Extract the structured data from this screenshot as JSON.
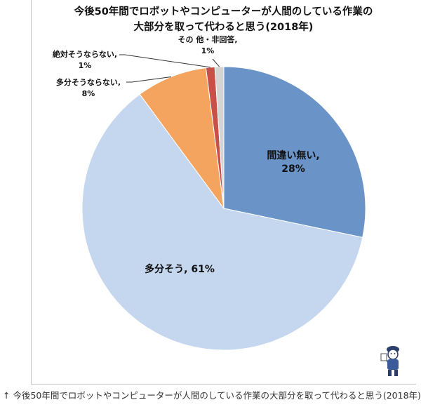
{
  "chart_data": {
    "type": "pie",
    "title_lines": [
      "今後50年間でロボットやコンピューターが人間のしている作業の",
      "大部分を取って代わると思う(2018年)"
    ],
    "slices": [
      {
        "name": "間違い無い",
        "value": 28,
        "label": "28%",
        "color": "#6a94c7"
      },
      {
        "name": "多分そう",
        "value": 61,
        "label": "61%",
        "color": "#c5d7ef"
      },
      {
        "name": "多分そうならない",
        "value": 8,
        "label": "8%",
        "color": "#f5a460"
      },
      {
        "name": "絶対そうならない",
        "value": 1,
        "label": "1%",
        "color": "#c85048"
      },
      {
        "name": "その 他・非回答",
        "value": 1,
        "label": "1%",
        "color": "#d4d4d4"
      }
    ]
  },
  "caption": "↑ 今後50年間でロボットやコンピューターが人間のしている作業の大部分を取って代わると思う(2018年)"
}
